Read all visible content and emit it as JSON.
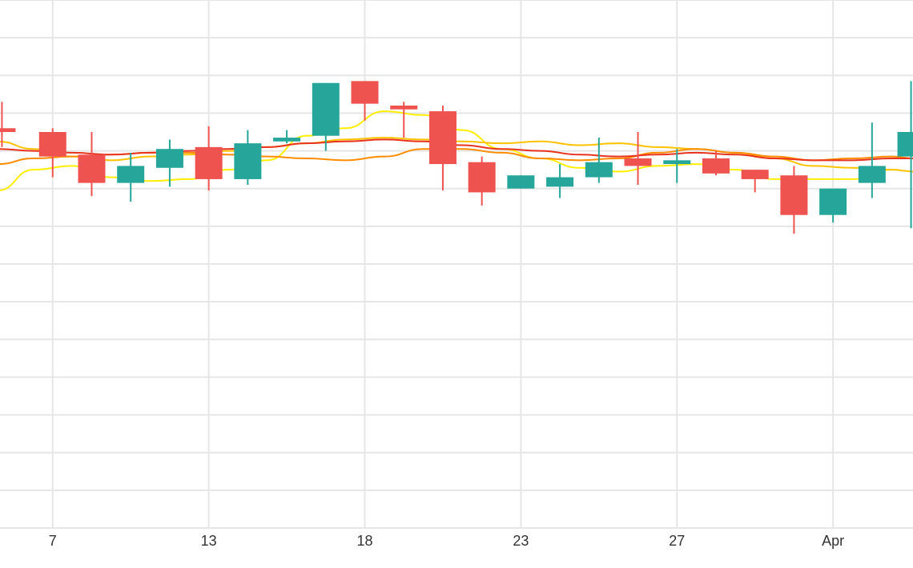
{
  "chart_data": {
    "type": "candlestick",
    "title": "",
    "xlabel": "",
    "ylabel": "",
    "grid": true,
    "x_ticks": [
      {
        "x": 3,
        "label": "7"
      },
      {
        "x": 7,
        "label": "13"
      },
      {
        "x": 11,
        "label": "18"
      },
      {
        "x": 15,
        "label": "23"
      },
      {
        "x": 19,
        "label": "27"
      },
      {
        "x": 23,
        "label": "Apr"
      }
    ],
    "xlim": [
      1.65,
      25.05
    ],
    "ylim": [
      0,
      14
    ],
    "colors": {
      "up": "#26a69a",
      "down": "#ef5350",
      "grid": "#e6e6e6"
    },
    "candles": [
      {
        "x": 1.7,
        "open": 10.6,
        "high": 11.3,
        "low": 10.1,
        "close": 10.5
      },
      {
        "x": 3.0,
        "open": 10.5,
        "high": 10.6,
        "low": 9.3,
        "close": 9.85
      },
      {
        "x": 4.0,
        "open": 9.9,
        "high": 10.5,
        "low": 8.8,
        "close": 9.15
      },
      {
        "x": 5.0,
        "open": 9.15,
        "high": 9.95,
        "low": 8.65,
        "close": 9.6
      },
      {
        "x": 6.0,
        "open": 9.55,
        "high": 10.3,
        "low": 9.05,
        "close": 10.05
      },
      {
        "x": 7.0,
        "open": 10.1,
        "high": 10.65,
        "low": 8.95,
        "close": 9.25
      },
      {
        "x": 8.0,
        "open": 9.25,
        "high": 10.55,
        "low": 9.1,
        "close": 10.2
      },
      {
        "x": 9.0,
        "open": 10.25,
        "high": 10.55,
        "low": 10.2,
        "close": 10.35
      },
      {
        "x": 10.0,
        "open": 10.4,
        "high": 11.75,
        "low": 10.0,
        "close": 11.8
      },
      {
        "x": 11.0,
        "open": 11.85,
        "high": 11.85,
        "low": 10.8,
        "close": 11.25
      },
      {
        "x": 12.0,
        "open": 11.2,
        "high": 11.3,
        "low": 10.35,
        "close": 11.1
      },
      {
        "x": 13.0,
        "open": 11.05,
        "high": 11.2,
        "low": 8.95,
        "close": 9.65
      },
      {
        "x": 14.0,
        "open": 9.7,
        "high": 9.85,
        "low": 8.55,
        "close": 8.9
      },
      {
        "x": 15.0,
        "open": 9.0,
        "high": 9.35,
        "low": 9.0,
        "close": 9.35
      },
      {
        "x": 16.0,
        "open": 9.05,
        "high": 9.65,
        "low": 8.75,
        "close": 9.3
      },
      {
        "x": 17.0,
        "open": 9.3,
        "high": 10.35,
        "low": 9.15,
        "close": 9.7
      },
      {
        "x": 18.0,
        "open": 9.8,
        "high": 10.5,
        "low": 9.1,
        "close": 9.6
      },
      {
        "x": 19.0,
        "open": 9.65,
        "high": 10.05,
        "low": 9.15,
        "close": 9.75
      },
      {
        "x": 20.0,
        "open": 9.8,
        "high": 10.0,
        "low": 9.35,
        "close": 9.4
      },
      {
        "x": 21.0,
        "open": 9.5,
        "high": 9.5,
        "low": 8.9,
        "close": 9.25
      },
      {
        "x": 22.0,
        "open": 9.35,
        "high": 9.6,
        "low": 7.8,
        "close": 8.3
      },
      {
        "x": 23.0,
        "open": 8.3,
        "high": 8.9,
        "low": 8.1,
        "close": 9.0
      },
      {
        "x": 24.0,
        "open": 9.15,
        "high": 10.75,
        "low": 8.75,
        "close": 9.6
      },
      {
        "x": 25.0,
        "open": 9.85,
        "high": 11.85,
        "low": 7.95,
        "close": 10.5
      }
    ],
    "moving_averages": [
      {
        "color": "#ffee00",
        "values": [
          [
            1.6,
            8.95
          ],
          [
            2.5,
            9.5
          ],
          [
            3.5,
            9.6
          ],
          [
            4.5,
            9.3
          ],
          [
            5.5,
            9.2
          ],
          [
            6.5,
            9.25
          ],
          [
            7.5,
            9.5
          ],
          [
            8.5,
            9.75
          ],
          [
            9.5,
            10.4
          ],
          [
            10.5,
            10.6
          ],
          [
            11.5,
            11.05
          ],
          [
            12.5,
            10.95
          ],
          [
            13.5,
            10.55
          ],
          [
            14.5,
            10.05
          ],
          [
            15.5,
            9.8
          ],
          [
            16.5,
            9.55
          ],
          [
            17.5,
            9.45
          ],
          [
            18.5,
            9.6
          ],
          [
            19.5,
            9.65
          ],
          [
            20.5,
            9.5
          ],
          [
            21.5,
            9.25
          ],
          [
            22.5,
            9.25
          ],
          [
            23.5,
            9.25
          ],
          [
            24.5,
            9.5
          ],
          [
            25.1,
            9.45
          ]
        ]
      },
      {
        "color": "#ffc200",
        "values": [
          [
            1.6,
            10.25
          ],
          [
            2.5,
            10.05
          ],
          [
            3.5,
            9.85
          ],
          [
            4.5,
            9.75
          ],
          [
            5.5,
            9.85
          ],
          [
            6.5,
            9.9
          ],
          [
            7.5,
            10.0
          ],
          [
            8.5,
            10.1
          ],
          [
            9.5,
            10.2
          ],
          [
            10.5,
            10.3
          ],
          [
            11.5,
            10.35
          ],
          [
            12.5,
            10.3
          ],
          [
            13.5,
            10.25
          ],
          [
            14.5,
            10.2
          ],
          [
            15.5,
            10.25
          ],
          [
            16.5,
            10.15
          ],
          [
            17.5,
            10.2
          ],
          [
            18.5,
            10.1
          ],
          [
            19.5,
            10.05
          ],
          [
            20.5,
            9.95
          ],
          [
            21.5,
            9.8
          ],
          [
            22.5,
            9.6
          ],
          [
            23.5,
            9.55
          ],
          [
            24.5,
            9.5
          ],
          [
            25.1,
            9.45
          ]
        ]
      },
      {
        "color": "#ff8c00",
        "values": [
          [
            1.6,
            9.65
          ],
          [
            2.5,
            9.8
          ],
          [
            3.5,
            9.85
          ],
          [
            4.5,
            9.9
          ],
          [
            5.5,
            9.95
          ],
          [
            6.5,
            9.95
          ],
          [
            7.5,
            9.9
          ],
          [
            8.5,
            9.85
          ],
          [
            9.5,
            9.8
          ],
          [
            10.5,
            9.75
          ],
          [
            11.5,
            9.85
          ],
          [
            12.5,
            10.05
          ],
          [
            13.5,
            10.05
          ],
          [
            14.5,
            9.95
          ],
          [
            15.5,
            9.8
          ],
          [
            16.5,
            9.75
          ],
          [
            17.5,
            9.8
          ],
          [
            18.5,
            9.95
          ],
          [
            19.5,
            10.05
          ],
          [
            20.5,
            9.95
          ],
          [
            21.5,
            9.85
          ],
          [
            22.5,
            9.75
          ],
          [
            23.5,
            9.8
          ],
          [
            24.5,
            9.85
          ],
          [
            25.1,
            9.8
          ]
        ]
      },
      {
        "color": "#e8331f",
        "values": [
          [
            1.6,
            10.05
          ],
          [
            2.5,
            10.0
          ],
          [
            3.5,
            9.95
          ],
          [
            4.5,
            9.9
          ],
          [
            5.5,
            9.95
          ],
          [
            6.5,
            10.0
          ],
          [
            7.5,
            10.05
          ],
          [
            8.5,
            10.1
          ],
          [
            9.5,
            10.2
          ],
          [
            10.5,
            10.25
          ],
          [
            11.5,
            10.3
          ],
          [
            12.5,
            10.25
          ],
          [
            13.5,
            10.15
          ],
          [
            14.5,
            10.05
          ],
          [
            15.5,
            10.0
          ],
          [
            16.5,
            9.9
          ],
          [
            17.5,
            9.85
          ],
          [
            18.5,
            9.9
          ],
          [
            19.5,
            9.95
          ],
          [
            20.5,
            9.9
          ],
          [
            21.5,
            9.8
          ],
          [
            22.5,
            9.75
          ],
          [
            23.5,
            9.75
          ],
          [
            24.5,
            9.8
          ],
          [
            25.1,
            9.8
          ]
        ]
      }
    ]
  }
}
